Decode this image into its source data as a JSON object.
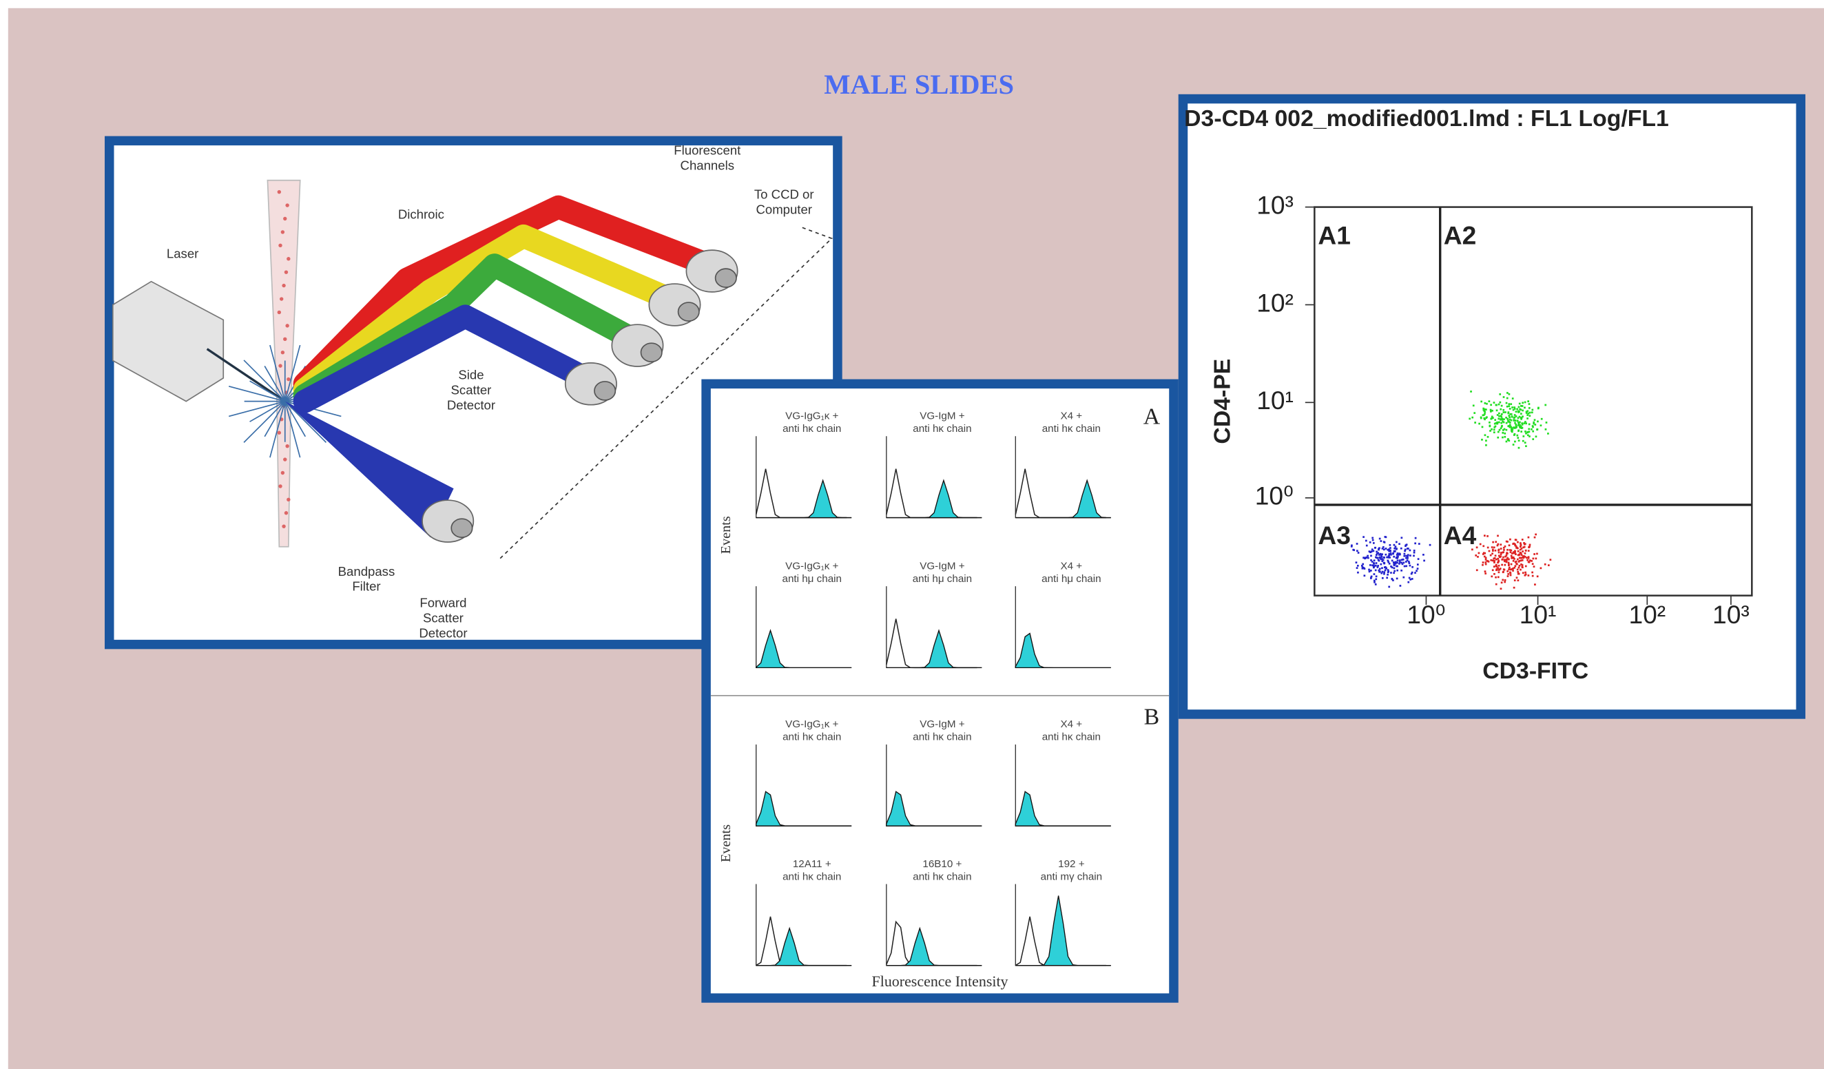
{
  "title": "MALE SLIDES",
  "diagram": {
    "labels": [
      [
        "Laser"
      ],
      [
        "Dichroic"
      ],
      [
        "Fluorescent",
        "Channels"
      ],
      [
        "To CCD or",
        "Computer"
      ],
      [
        "Side",
        "Scatter",
        "Detector"
      ],
      [
        "Bandpass",
        "Filter"
      ],
      [
        "Forward",
        "Scatter",
        "Detector"
      ]
    ]
  },
  "histograms": {
    "panels": [
      {
        "label": "A",
        "plots": [
          [
            "VG-IgG₁κ +",
            "anti hκ chain"
          ],
          [
            "VG-IgM +",
            "anti hκ chain"
          ],
          [
            "X4 +",
            "anti hκ chain"
          ],
          [
            "VG-IgG₁κ +",
            "anti hμ chain"
          ],
          [
            "VG-IgM +",
            "anti hμ chain"
          ],
          [
            "X4 +",
            "anti hμ chain"
          ]
        ]
      },
      {
        "label": "B",
        "plots": [
          [
            "VG-IgG₁κ +",
            "anti hκ chain"
          ],
          [
            "VG-IgM +",
            "anti hκ chain"
          ],
          [
            "X4 +",
            "anti hκ chain"
          ],
          [
            "12A11 +",
            "anti hκ chain"
          ],
          [
            "16B10 +",
            "anti hκ chain"
          ],
          [
            "192 +",
            "anti mγ chain"
          ]
        ]
      }
    ],
    "y_label": "Events",
    "x_label": "Fluorescence Intensity"
  },
  "dotplot": {
    "title": "D3-CD4 002_modified001.lmd : FL1 Log/FL1",
    "x_label": "CD3-FITC",
    "y_label": "CD4-PE",
    "quadrants": [
      "A1",
      "A2",
      "A3",
      "A4"
    ],
    "xticks": [
      "10⁰",
      "10¹",
      "10²",
      "10³"
    ],
    "yticks": [
      "10³",
      "10²",
      "10¹",
      "10⁰"
    ]
  }
}
